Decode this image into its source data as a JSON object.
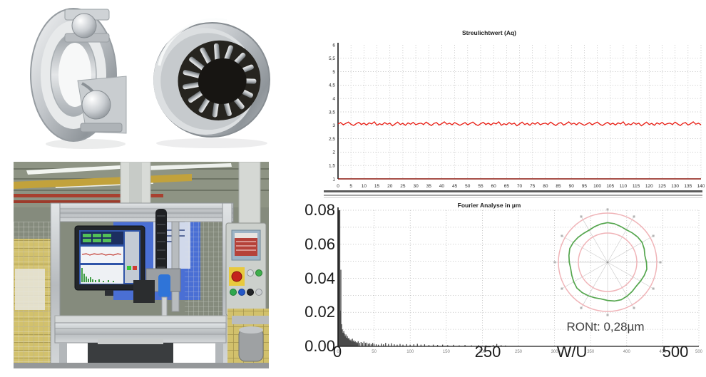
{
  "page": {
    "background": "#ffffff"
  },
  "photos": {
    "bearing_photo": {
      "alt": "cutaway ball bearing and needle roller bearing"
    },
    "machine_photo": {
      "alt": "inline optical measurement station in factory"
    }
  },
  "chart_data": [
    {
      "id": "streulicht",
      "type": "line",
      "title": "Streulichtwert (Aq)",
      "xlabel": "",
      "ylabel": "",
      "ylim": [
        1,
        6
      ],
      "ytick_labels": [
        "6",
        "5,5",
        "5",
        "4,5",
        "4",
        "3,5",
        "3",
        "2,5",
        "2",
        "1,5",
        "1"
      ],
      "xlim": [
        0,
        140
      ],
      "xtick_step": 5,
      "grid": true,
      "line_color": "#e8170d",
      "baseline_color": "#8a150c",
      "baseline_value": 1,
      "x_step": 1,
      "values": [
        3.05,
        3.1,
        3.02,
        3.07,
        3.12,
        3.04,
        2.99,
        3.06,
        3.11,
        3.03,
        3.08,
        3.01,
        3.09,
        3.05,
        3.13,
        3.0,
        3.06,
        3.02,
        3.1,
        3.04,
        3.08,
        2.98,
        3.05,
        3.12,
        3.03,
        3.07,
        3.0,
        3.09,
        3.04,
        3.11,
        3.02,
        3.06,
        3.08,
        3.03,
        3.12,
        3.05,
        2.99,
        3.07,
        3.1,
        3.01,
        3.06,
        3.13,
        3.04,
        3.08,
        3.02,
        3.1,
        3.05,
        3.0,
        3.05,
        3.1,
        3.02,
        3.07,
        3.12,
        3.04,
        2.99,
        3.06,
        3.11,
        3.03,
        3.08,
        3.01,
        3.09,
        3.05,
        3.13,
        3.0,
        3.06,
        3.02,
        3.1,
        3.04,
        3.08,
        2.98,
        3.05,
        3.12,
        3.03,
        3.07,
        3.0,
        3.09,
        3.04,
        3.11,
        3.02,
        3.06,
        3.08,
        3.03,
        3.12,
        3.05,
        2.99,
        3.07,
        3.1,
        3.01,
        3.06,
        3.13,
        3.04,
        3.08,
        3.02,
        3.1,
        3.05,
        3.0,
        3.05,
        3.1,
        3.02,
        3.07,
        3.12,
        3.04,
        2.99,
        3.06,
        3.11,
        3.03,
        3.08,
        3.01,
        3.09,
        3.05,
        3.13,
        3.0,
        3.06,
        3.02,
        3.1,
        3.04,
        3.08,
        2.98,
        3.05,
        3.12,
        3.03,
        3.07,
        3.0,
        3.09,
        3.04,
        3.11,
        3.02,
        3.06,
        3.08,
        3.03,
        3.12,
        3.05,
        2.99,
        3.07,
        3.1,
        3.01,
        3.06,
        3.13,
        3.04,
        3.08,
        3.02
      ]
    },
    {
      "id": "fourier",
      "type": "bar",
      "title": "Fourier Analyse in µm",
      "ylim": [
        0,
        0.08
      ],
      "grid_y_step": 0.01,
      "xlim": [
        0,
        500
      ],
      "xtick_step": 50,
      "bar_color": "#4a4a4a",
      "overlay_y_labels": [
        "0.08",
        "0.06",
        "0.04",
        "0.02",
        "0.00"
      ],
      "overlay_x_labels": [
        "0",
        "250",
        "W/U",
        "500"
      ],
      "axis_unit": "W/U",
      "bars": [
        [
          1,
          0.085
        ],
        [
          2,
          0.085
        ],
        [
          3,
          0.021
        ],
        [
          4,
          0.045
        ],
        [
          5,
          0.013
        ],
        [
          6,
          0.01
        ],
        [
          7,
          0.008
        ],
        [
          8,
          0.009
        ],
        [
          9,
          0.0075
        ],
        [
          10,
          0.006
        ],
        [
          11,
          0.007
        ],
        [
          12,
          0.005
        ],
        [
          13,
          0.006
        ],
        [
          14,
          0.0045
        ],
        [
          15,
          0.005
        ],
        [
          16,
          0.004
        ],
        [
          17,
          0.0035
        ],
        [
          18,
          0.004
        ],
        [
          19,
          0.003
        ],
        [
          20,
          0.0045
        ],
        [
          21,
          0.003
        ],
        [
          22,
          0.0035
        ],
        [
          23,
          0.0025
        ],
        [
          24,
          0.003
        ],
        [
          25,
          0.002
        ],
        [
          26,
          0.0025
        ],
        [
          27,
          0.002
        ],
        [
          28,
          0.003
        ],
        [
          30,
          0.002
        ],
        [
          32,
          0.0025
        ],
        [
          34,
          0.002
        ],
        [
          36,
          0.0028
        ],
        [
          38,
          0.002
        ],
        [
          40,
          0.0022
        ],
        [
          42,
          0.0015
        ],
        [
          44,
          0.0018
        ],
        [
          46,
          0.0012
        ],
        [
          48,
          0.002
        ],
        [
          50,
          0.0015
        ],
        [
          53,
          0.0012
        ],
        [
          56,
          0.001
        ],
        [
          60,
          0.0016
        ],
        [
          63,
          0.0012
        ],
        [
          66,
          0.002
        ],
        [
          70,
          0.0014
        ],
        [
          74,
          0.0018
        ],
        [
          78,
          0.0012
        ],
        [
          82,
          0.001
        ],
        [
          86,
          0.0014
        ],
        [
          90,
          0.001
        ],
        [
          95,
          0.0013
        ],
        [
          100,
          0.001
        ],
        [
          105,
          0.0012
        ],
        [
          110,
          0.0015
        ],
        [
          115,
          0.001
        ],
        [
          120,
          0.0012
        ],
        [
          126,
          0.0008
        ],
        [
          132,
          0.001
        ],
        [
          138,
          0.0008
        ],
        [
          145,
          0.001
        ],
        [
          152,
          0.0007
        ],
        [
          160,
          0.0009
        ],
        [
          168,
          0.0006
        ],
        [
          176,
          0.0008
        ],
        [
          185,
          0.0006
        ],
        [
          195,
          0.0007
        ],
        [
          205,
          0.0006
        ],
        [
          215,
          0.0008
        ],
        [
          220,
          0.0014
        ],
        [
          226,
          0.0007
        ],
        [
          232,
          0.0005
        ]
      ],
      "polar": {
        "label": "RONt: 0,28µm",
        "tolerance_color": "#f0b4b8",
        "profile_color": "#55a64e",
        "spoke_color": "#cfcfcf",
        "spokes": 12,
        "outer_r": 69,
        "inner_r": 41,
        "profile_base_r": 54,
        "profile_wobble": [
          0.5,
          1.8,
          0.6,
          -0.8,
          -1.6,
          -0.5,
          0.8,
          2.0,
          1.2,
          -0.4,
          -1.8,
          -1.0,
          0.3,
          1.5,
          2.2,
          0.8,
          -0.6,
          -1.5,
          -0.3,
          1.0,
          2.4,
          1.5,
          0.2,
          -1.2,
          -2.0,
          -0.8,
          0.5,
          1.6,
          0.9,
          -0.5,
          -1.4,
          -0.2,
          1.1,
          1.9,
          0.7,
          -0.9
        ]
      }
    }
  ],
  "ui": {
    "scrollbar": {
      "orientation": "horizontal"
    }
  }
}
